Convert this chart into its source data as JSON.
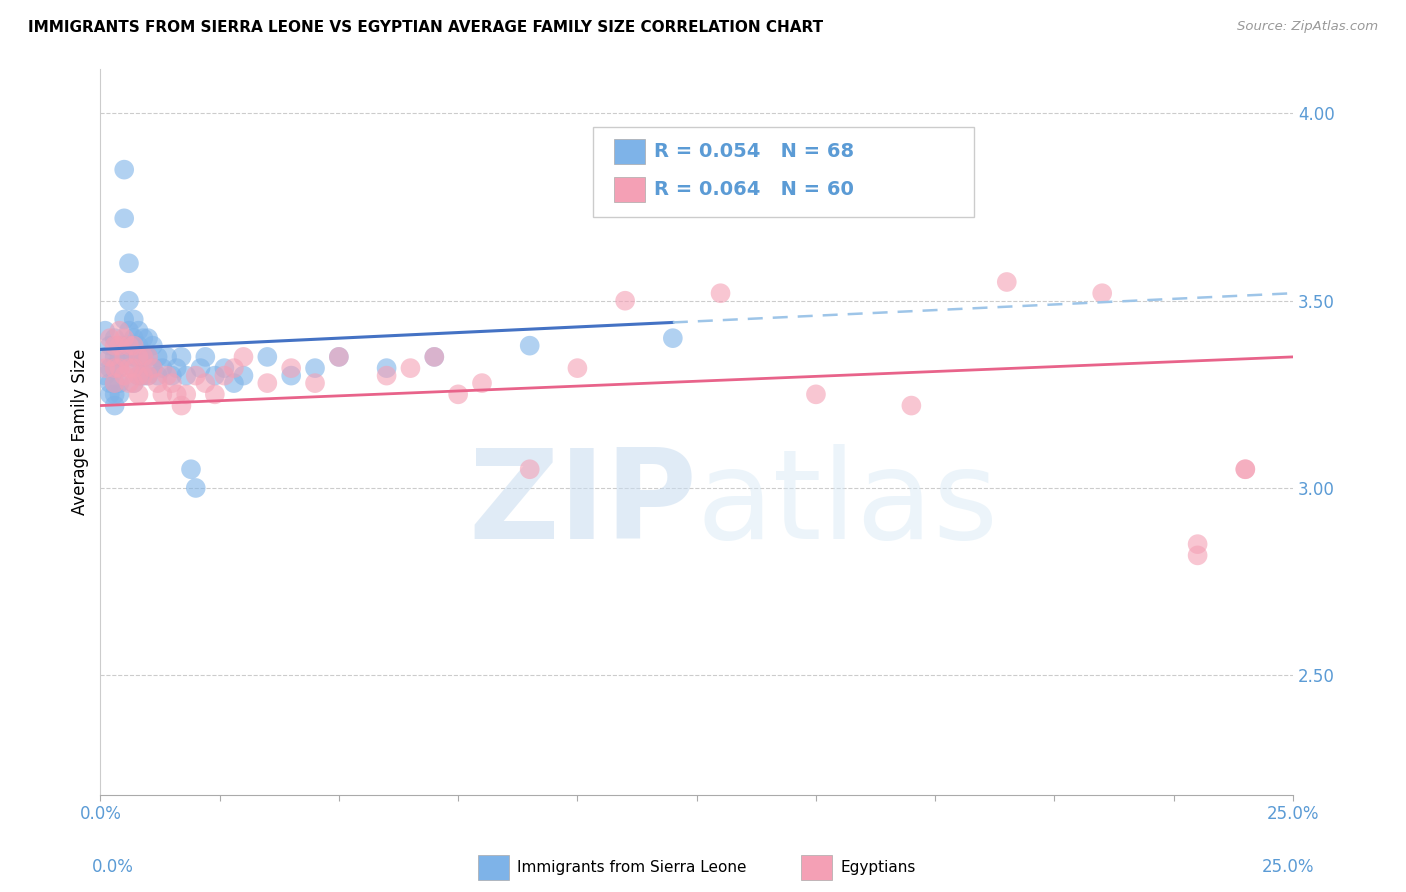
{
  "title": "IMMIGRANTS FROM SIERRA LEONE VS EGYPTIAN AVERAGE FAMILY SIZE CORRELATION CHART",
  "source": "Source: ZipAtlas.com",
  "ylabel": "Average Family Size",
  "right_yticks": [
    2.5,
    3.0,
    3.5,
    4.0
  ],
  "xlim": [
    0.0,
    0.25
  ],
  "ylim": [
    2.18,
    4.12
  ],
  "color_blue": "#7EB3E8",
  "color_pink": "#F4A0B5",
  "color_blue_line": "#4472C4",
  "color_pink_line": "#E8638A",
  "color_blue_dashed": "#9EC5E8",
  "color_right_axis": "#5B9BD5",
  "watermark_color": "#D5E8F5",
  "legend_label1": "Immigrants from Sierra Leone",
  "legend_label2": "Egyptians",
  "sl_x": [
    0.001,
    0.001,
    0.001,
    0.002,
    0.002,
    0.002,
    0.002,
    0.003,
    0.003,
    0.003,
    0.003,
    0.003,
    0.003,
    0.004,
    0.004,
    0.004,
    0.004,
    0.004,
    0.005,
    0.005,
    0.005,
    0.005,
    0.005,
    0.006,
    0.006,
    0.006,
    0.006,
    0.007,
    0.007,
    0.007,
    0.007,
    0.007,
    0.008,
    0.008,
    0.008,
    0.008,
    0.009,
    0.009,
    0.009,
    0.01,
    0.01,
    0.01,
    0.011,
    0.011,
    0.012,
    0.012,
    0.013,
    0.014,
    0.015,
    0.016,
    0.017,
    0.018,
    0.019,
    0.02,
    0.021,
    0.022,
    0.024,
    0.026,
    0.028,
    0.03,
    0.035,
    0.04,
    0.045,
    0.05,
    0.06,
    0.07,
    0.09,
    0.12
  ],
  "sl_y": [
    3.35,
    3.3,
    3.42,
    3.38,
    3.32,
    3.28,
    3.25,
    3.4,
    3.35,
    3.32,
    3.28,
    3.25,
    3.22,
    3.38,
    3.35,
    3.32,
    3.28,
    3.25,
    3.85,
    3.72,
    3.45,
    3.38,
    3.35,
    3.6,
    3.5,
    3.42,
    3.38,
    3.45,
    3.4,
    3.35,
    3.32,
    3.28,
    3.42,
    3.38,
    3.35,
    3.3,
    3.4,
    3.35,
    3.3,
    3.4,
    3.35,
    3.3,
    3.38,
    3.32,
    3.35,
    3.3,
    3.32,
    3.35,
    3.3,
    3.32,
    3.35,
    3.3,
    3.05,
    3.0,
    3.32,
    3.35,
    3.3,
    3.32,
    3.28,
    3.3,
    3.35,
    3.3,
    3.32,
    3.35,
    3.32,
    3.35,
    3.38,
    3.4
  ],
  "eg_x": [
    0.001,
    0.002,
    0.002,
    0.003,
    0.003,
    0.003,
    0.004,
    0.004,
    0.004,
    0.005,
    0.005,
    0.005,
    0.006,
    0.006,
    0.006,
    0.007,
    0.007,
    0.007,
    0.008,
    0.008,
    0.008,
    0.009,
    0.009,
    0.01,
    0.01,
    0.011,
    0.012,
    0.013,
    0.014,
    0.015,
    0.016,
    0.017,
    0.018,
    0.02,
    0.022,
    0.024,
    0.026,
    0.028,
    0.03,
    0.035,
    0.04,
    0.045,
    0.05,
    0.06,
    0.065,
    0.07,
    0.075,
    0.08,
    0.09,
    0.1,
    0.11,
    0.13,
    0.15,
    0.17,
    0.19,
    0.21,
    0.23,
    0.23,
    0.24,
    0.24
  ],
  "eg_y": [
    3.32,
    3.4,
    3.35,
    3.38,
    3.32,
    3.28,
    3.42,
    3.38,
    3.32,
    3.4,
    3.35,
    3.3,
    3.38,
    3.32,
    3.28,
    3.38,
    3.32,
    3.28,
    3.35,
    3.3,
    3.25,
    3.35,
    3.3,
    3.35,
    3.3,
    3.32,
    3.28,
    3.25,
    3.3,
    3.28,
    3.25,
    3.22,
    3.25,
    3.3,
    3.28,
    3.25,
    3.3,
    3.32,
    3.35,
    3.28,
    3.32,
    3.28,
    3.35,
    3.3,
    3.32,
    3.35,
    3.25,
    3.28,
    3.05,
    3.32,
    3.5,
    3.52,
    3.25,
    3.22,
    3.55,
    3.52,
    2.85,
    2.82,
    3.05,
    3.05
  ],
  "sl_line_x0": 0.0,
  "sl_line_x_solid_end": 0.12,
  "sl_line_x1": 0.25,
  "sl_line_y0": 3.37,
  "sl_line_y1": 3.52,
  "eg_line_x0": 0.0,
  "eg_line_x1": 0.25,
  "eg_line_y0": 3.22,
  "eg_line_y1": 3.35
}
